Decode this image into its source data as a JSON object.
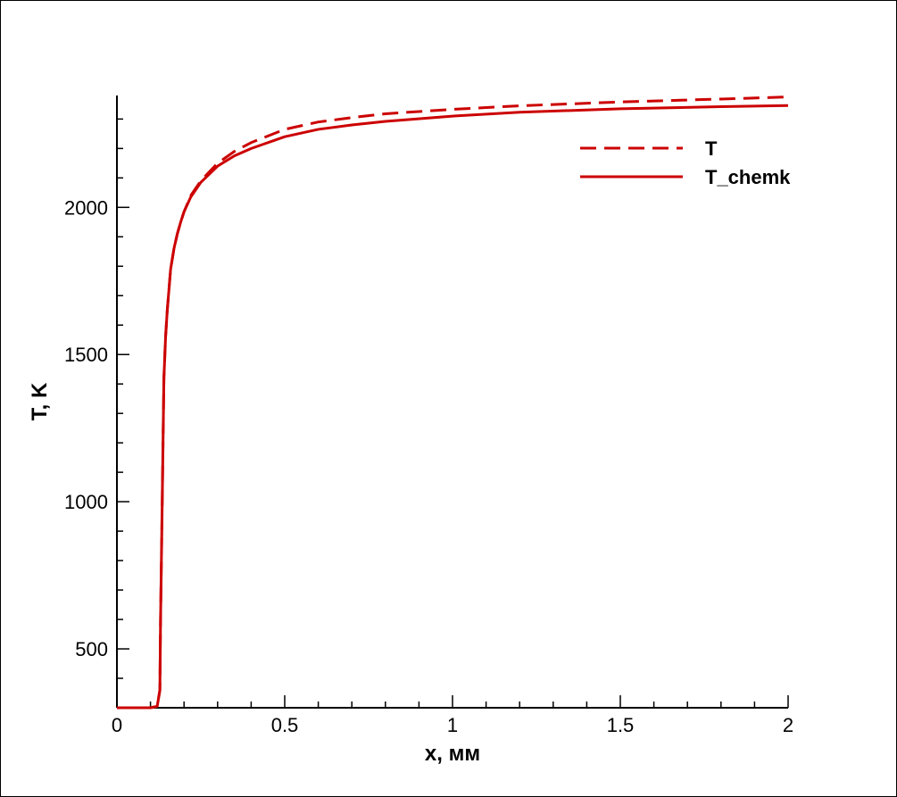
{
  "chart_data": {
    "type": "line",
    "title": "",
    "xlabel": "x, мм",
    "ylabel": "T, K",
    "xlim": [
      0,
      2
    ],
    "ylim": [
      300,
      2380
    ],
    "x_ticks": [
      0,
      0.5,
      1,
      1.5,
      2
    ],
    "x_tick_labels": [
      "0",
      "0.5",
      "1",
      "1.5",
      "2"
    ],
    "y_ticks": [
      500,
      1000,
      1500,
      2000
    ],
    "y_tick_labels": [
      "500",
      "1000",
      "1500",
      "2000"
    ],
    "grid": false,
    "legend_position": "top-right",
    "series": [
      {
        "name": "T",
        "style": "dashed",
        "color": "#cc0000",
        "x": [
          0,
          0.1,
          0.12,
          0.128,
          0.13,
          0.135,
          0.14,
          0.145,
          0.15,
          0.155,
          0.16,
          0.17,
          0.18,
          0.19,
          0.2,
          0.22,
          0.25,
          0.3,
          0.35,
          0.4,
          0.5,
          0.6,
          0.7,
          0.8,
          1.0,
          1.2,
          1.5,
          1.8,
          2.0
        ],
        "y": [
          300,
          300,
          305,
          360,
          600,
          1000,
          1420,
          1560,
          1650,
          1720,
          1790,
          1860,
          1910,
          1950,
          1985,
          2040,
          2090,
          2150,
          2190,
          2220,
          2265,
          2290,
          2305,
          2318,
          2333,
          2345,
          2358,
          2368,
          2375
        ]
      },
      {
        "name": "T_chemk",
        "style": "solid",
        "color": "#cc0000",
        "x": [
          0,
          0.1,
          0.12,
          0.128,
          0.13,
          0.135,
          0.14,
          0.145,
          0.15,
          0.155,
          0.16,
          0.17,
          0.18,
          0.19,
          0.2,
          0.22,
          0.25,
          0.3,
          0.35,
          0.4,
          0.5,
          0.6,
          0.7,
          0.8,
          1.0,
          1.2,
          1.5,
          1.8,
          2.0
        ],
        "y": [
          300,
          300,
          305,
          360,
          600,
          1000,
          1420,
          1560,
          1650,
          1720,
          1790,
          1860,
          1910,
          1950,
          1985,
          2035,
          2085,
          2140,
          2175,
          2200,
          2240,
          2265,
          2280,
          2292,
          2310,
          2323,
          2335,
          2342,
          2346
        ]
      }
    ]
  }
}
